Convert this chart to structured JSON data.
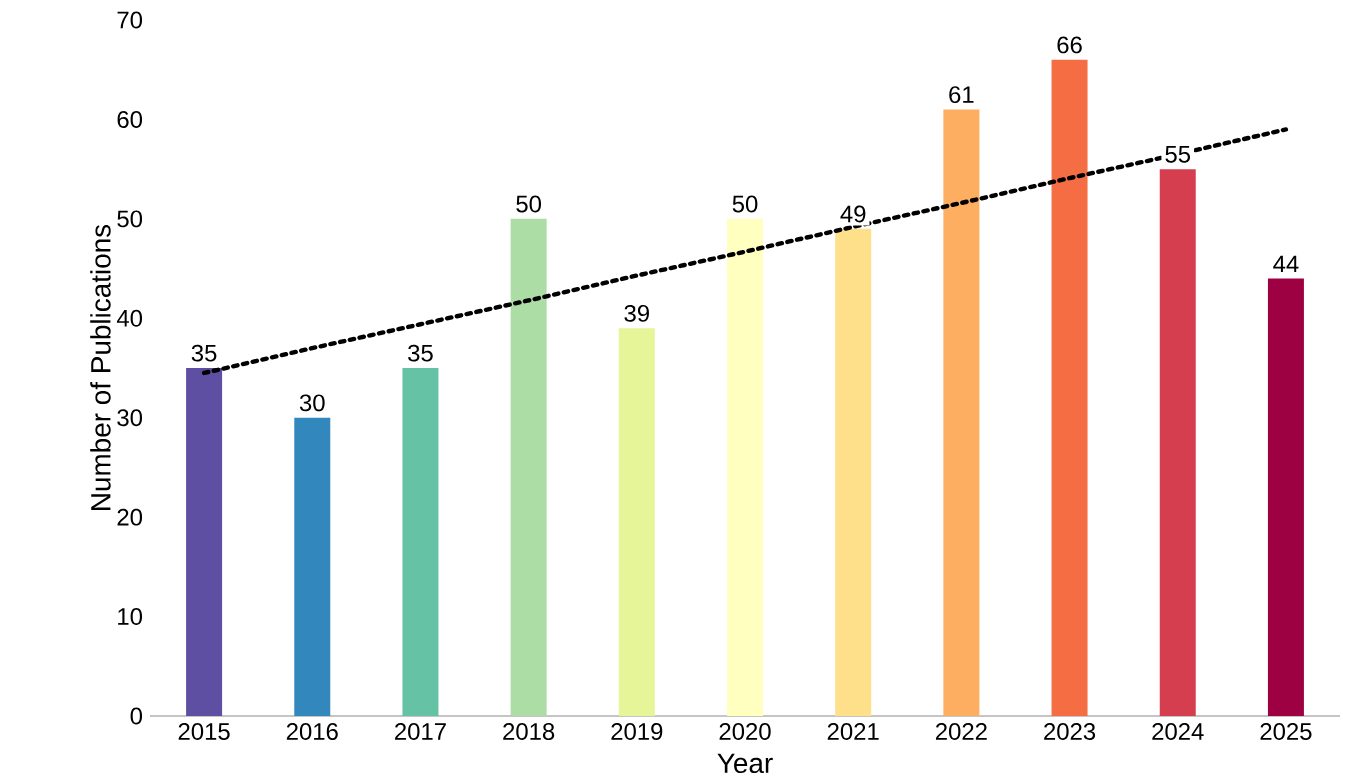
{
  "chart_data": {
    "type": "bar",
    "xlabel": "Year",
    "ylabel": "Number of Publications",
    "categories": [
      "2015",
      "2016",
      "2017",
      "2018",
      "2019",
      "2020",
      "2021",
      "2022",
      "2023",
      "2024",
      "2025"
    ],
    "values": [
      35,
      30,
      35,
      50,
      39,
      50,
      49,
      61,
      66,
      55,
      44
    ],
    "value_labels": [
      "35",
      "30",
      "35",
      "50",
      "39",
      "50",
      "49",
      "61",
      "66",
      "55",
      "44"
    ],
    "colors": [
      "#5e4fa2",
      "#3288bd",
      "#66c2a5",
      "#abdda4",
      "#e6f598",
      "#ffffbf",
      "#fee08b",
      "#fdae61",
      "#f46d43",
      "#d53e4f",
      "#9e0142"
    ],
    "series": [
      {
        "type": "line",
        "values": [
          34.5,
          37,
          39.4,
          41.8,
          44.3,
          46.7,
          49.2,
          51.6,
          54.1,
          56.5,
          59
        ],
        "color": "#000000",
        "line_style": "dotted",
        "marker": "none"
      }
    ],
    "grid": false,
    "ylim": [
      0,
      70
    ],
    "yticks": [
      0,
      10,
      20,
      30,
      40,
      50,
      60,
      70
    ]
  }
}
